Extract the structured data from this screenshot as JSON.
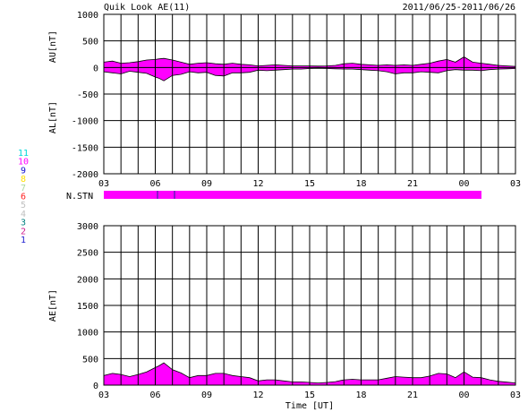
{
  "header": {
    "title": "Quik Look AE(11)",
    "date_range": "2011/06/25-2011/06/26"
  },
  "time_ticks": [
    "03",
    "06",
    "09",
    "12",
    "15",
    "18",
    "21",
    "00",
    "03"
  ],
  "xlabel": "Time [UT]",
  "nstn_label": "N.STN",
  "station_legend": [
    {
      "label": "11",
      "color": "#00d8d8"
    },
    {
      "label": "10",
      "color": "#ff00ff"
    },
    {
      "label": "9",
      "color": "#1010d0"
    },
    {
      "label": "8",
      "color": "#ffe000"
    },
    {
      "label": "7",
      "color": "#a8d8a0"
    },
    {
      "label": "6",
      "color": "#ff2020"
    },
    {
      "label": "5",
      "color": "#c0c0c0"
    },
    {
      "label": "4",
      "color": "#c0c0c0"
    },
    {
      "label": "3",
      "color": "#008080"
    },
    {
      "label": "2",
      "color": "#d02090"
    },
    {
      "label": "1",
      "color": "#2020d0"
    }
  ],
  "colors": {
    "fill": "#ff00ff",
    "grid": "#000000",
    "nstn_marker": "#2020a0"
  },
  "chart_data": [
    {
      "type": "area",
      "panel": "AU/AL",
      "ylabel_top": "AU[nT]",
      "ylabel_bottom": "AL[nT]",
      "x_range_hours": [
        0,
        24
      ],
      "ylim": [
        -2000,
        1000
      ],
      "yticks": [
        1000,
        500,
        0,
        -500,
        -1000,
        -1500,
        -2000
      ],
      "grid": true,
      "x": [
        0,
        0.5,
        1,
        1.5,
        2,
        2.5,
        3,
        3.2,
        3.5,
        4,
        4.5,
        5,
        5.5,
        6,
        6.5,
        7,
        7.5,
        8,
        8.5,
        9,
        9.5,
        10,
        10.5,
        11,
        11.5,
        12,
        12.5,
        13,
        13.5,
        14,
        14.5,
        15,
        15.5,
        16,
        16.5,
        17,
        17.5,
        18,
        18.5,
        19,
        19.5,
        20,
        20.5,
        21,
        21.5,
        22,
        22.5,
        23,
        23.5,
        24
      ],
      "series": [
        {
          "name": "AU",
          "values": [
            100,
            120,
            80,
            90,
            110,
            140,
            150,
            160,
            170,
            140,
            100,
            60,
            80,
            90,
            70,
            60,
            80,
            60,
            50,
            30,
            40,
            50,
            40,
            30,
            30,
            30,
            25,
            30,
            40,
            70,
            80,
            60,
            50,
            40,
            50,
            40,
            50,
            40,
            60,
            80,
            120,
            150,
            100,
            200,
            100,
            80,
            60,
            40,
            30,
            20
          ]
        },
        {
          "name": "AL",
          "values": [
            -80,
            -100,
            -120,
            -70,
            -90,
            -110,
            -180,
            -200,
            -250,
            -150,
            -130,
            -80,
            -100,
            -90,
            -150,
            -160,
            -100,
            -100,
            -90,
            -50,
            -60,
            -50,
            -40,
            -30,
            -30,
            -20,
            -15,
            -20,
            -25,
            -30,
            -30,
            -40,
            -50,
            -60,
            -80,
            -120,
            -100,
            -100,
            -80,
            -90,
            -100,
            -60,
            -40,
            -50,
            -50,
            -60,
            -40,
            -30,
            -25,
            -20
          ]
        }
      ]
    },
    {
      "type": "area",
      "panel": "AE",
      "ylabel": "AE[nT]",
      "x_range_hours": [
        0,
        24
      ],
      "ylim": [
        0,
        3000
      ],
      "yticks": [
        3000,
        2500,
        2000,
        1500,
        1000,
        500,
        0
      ],
      "grid": true,
      "x": [
        0,
        0.5,
        1,
        1.5,
        2,
        2.5,
        3,
        3.2,
        3.5,
        4,
        4.5,
        5,
        5.5,
        6,
        6.5,
        7,
        7.5,
        8,
        8.5,
        9,
        9.5,
        10,
        10.5,
        11,
        11.5,
        12,
        12.5,
        13,
        13.5,
        14,
        14.5,
        15,
        15.5,
        16,
        16.5,
        17,
        17.5,
        18,
        18.5,
        19,
        19.5,
        20,
        20.5,
        21,
        21.5,
        22,
        22.5,
        23,
        23.5,
        24
      ],
      "series": [
        {
          "name": "AE",
          "values": [
            180,
            220,
            200,
            160,
            200,
            250,
            330,
            360,
            420,
            290,
            230,
            140,
            180,
            180,
            220,
            220,
            180,
            160,
            140,
            80,
            100,
            100,
            80,
            60,
            60,
            50,
            40,
            50,
            65,
            100,
            110,
            100,
            100,
            100,
            130,
            160,
            150,
            140,
            140,
            170,
            220,
            210,
            140,
            250,
            150,
            140,
            100,
            70,
            55,
            40
          ]
        }
      ]
    }
  ]
}
